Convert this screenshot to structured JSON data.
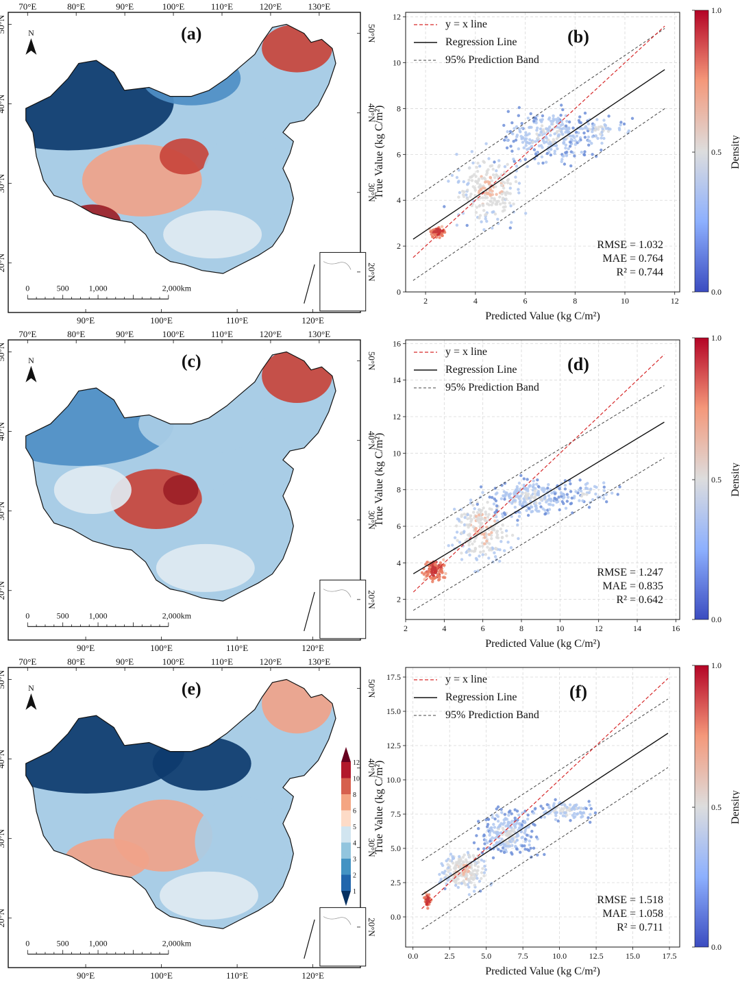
{
  "figure": {
    "maps": [
      {
        "panel": "(a)",
        "scale_labels": [
          "0",
          "500",
          "1,000",
          "2,000km"
        ],
        "top_lon_ticks": [
          "70°E",
          "80°E",
          "90°E",
          "100°E",
          "110°E",
          "120°E",
          "130°E"
        ],
        "bottom_lon_ticks": [
          "90°E",
          "100°E",
          "110°E",
          "120°E"
        ],
        "left_lat_ticks": [
          "50°N",
          "40°N",
          "30°N",
          "20°N"
        ],
        "right_lat_ticks": [
          "50°N",
          "40°N",
          "30°N",
          "20°N"
        ]
      },
      {
        "panel": "(c)",
        "scale_labels": [
          "0",
          "500",
          "1,000",
          "2,000km"
        ],
        "top_lon_ticks": [
          "70°E",
          "80°E",
          "90°E",
          "100°E",
          "110°E",
          "120°E",
          "130°E"
        ],
        "bottom_lon_ticks": [
          "90°E",
          "100°E",
          "110°E",
          "120°E"
        ],
        "left_lat_ticks": [
          "50°N",
          "40°N",
          "30°N",
          "20°N"
        ],
        "right_lat_ticks": [
          "50°N",
          "40°N",
          "30°N",
          "20°N"
        ]
      },
      {
        "panel": "(e)",
        "scale_labels": [
          "0",
          "500",
          "1,000",
          "2,000km"
        ],
        "top_lon_ticks": [
          "70°E",
          "80°E",
          "90°E",
          "100°E",
          "110°E",
          "120°E",
          "130°E"
        ],
        "bottom_lon_ticks": [
          "90°E",
          "100°E",
          "110°E",
          "120°E"
        ],
        "left_lat_ticks": [
          "50°N",
          "40°N",
          "30°N",
          "20°N"
        ],
        "right_lat_ticks": [
          "50°N",
          "40°N",
          "30°N",
          "20°N"
        ]
      }
    ],
    "north_label": "N",
    "map_colorbar": {
      "labels": [
        "12",
        "10",
        "8",
        "6",
        "5",
        "4",
        "3",
        "2",
        "1"
      ],
      "colors": [
        "#67001f",
        "#b2182b",
        "#d6604d",
        "#f4a582",
        "#fddbc7",
        "#d1e5f0",
        "#92c5de",
        "#4393c3",
        "#2166ac",
        "#053061"
      ]
    },
    "map_palette": {
      "deep_blue": "#0d3b6e",
      "mid_blue": "#4f8fc6",
      "light_blue": "#a9cde6",
      "pale": "#dfeaf2",
      "salmon": "#f0a38a",
      "red": "#c8453c",
      "dark_red": "#9c1f27"
    }
  },
  "chart_data": [
    {
      "panel": "(b)",
      "type": "scatter",
      "xlabel": "Predicted Value (kg C/m²)",
      "ylabel": "True Value (kg C/m²)",
      "xlim": [
        1.2,
        12.2
      ],
      "ylim": [
        0,
        12.2
      ],
      "xticks": [
        "2",
        "4",
        "6",
        "8",
        "10",
        "12"
      ],
      "yticks": [
        "0",
        "2",
        "4",
        "6",
        "8",
        "10",
        "12"
      ],
      "legend": [
        "y = x line",
        "Regression Line",
        "95% Prediction Band"
      ],
      "yx_line": [
        [
          1.5,
          1.5
        ],
        [
          11.6,
          11.6
        ]
      ],
      "regression": [
        [
          1.5,
          2.3
        ],
        [
          11.6,
          9.7
        ]
      ],
      "band_upper": [
        [
          1.5,
          4.05
        ],
        [
          11.6,
          11.5
        ]
      ],
      "band_lower": [
        [
          1.5,
          0.5
        ],
        [
          11.6,
          8.0
        ]
      ],
      "metrics": [
        "RMSE = 1.032",
        "MAE = 0.764",
        "R² = 0.744"
      ],
      "grid": true
    },
    {
      "panel": "(d)",
      "type": "scatter",
      "xlabel": "Predicted Value (kg C/m²)",
      "ylabel": "True Value (kg C/m²)",
      "xlim": [
        2,
        16.2
      ],
      "ylim": [
        0.9,
        16.2
      ],
      "xticks": [
        "2",
        "4",
        "6",
        "8",
        "10",
        "12",
        "14",
        "16"
      ],
      "yticks": [
        "2",
        "4",
        "6",
        "8",
        "10",
        "12",
        "14",
        "16"
      ],
      "legend": [
        "y = x line",
        "Regression Line",
        "95% Prediction Band"
      ],
      "yx_line": [
        [
          2.4,
          2.4
        ],
        [
          15.4,
          15.4
        ]
      ],
      "regression": [
        [
          2.4,
          3.4
        ],
        [
          15.4,
          11.7
        ]
      ],
      "band_upper": [
        [
          2.4,
          5.35
        ],
        [
          15.4,
          13.7
        ]
      ],
      "band_lower": [
        [
          2.4,
          1.4
        ],
        [
          15.4,
          9.75
        ]
      ],
      "metrics": [
        "RMSE = 1.247",
        "MAE = 0.835",
        "R² = 0.642"
      ],
      "grid": true
    },
    {
      "panel": "(f)",
      "type": "scatter",
      "xlabel": "Predicted Value (kg C/m²)",
      "ylabel": "True Value (kg C/m²)",
      "xlim": [
        -0.5,
        18.2
      ],
      "ylim": [
        -2.2,
        18.2
      ],
      "xticks": [
        "0.0",
        "2.5",
        "5.0",
        "7.5",
        "10.0",
        "12.5",
        "15.0",
        "17.5"
      ],
      "yticks": [
        "0.0",
        "2.5",
        "5.0",
        "7.5",
        "10.0",
        "12.5",
        "15.0",
        "17.5"
      ],
      "legend": [
        "y = x line",
        "Regression Line",
        "95% Prediction Band"
      ],
      "yx_line": [
        [
          0.6,
          0.6
        ],
        [
          17.4,
          17.4
        ]
      ],
      "regression": [
        [
          0.6,
          1.6
        ],
        [
          17.4,
          13.4
        ]
      ],
      "band_upper": [
        [
          0.6,
          4.1
        ],
        [
          17.4,
          15.9
        ]
      ],
      "band_lower": [
        [
          0.6,
          -0.9
        ],
        [
          17.4,
          10.9
        ]
      ],
      "metrics": [
        "RMSE = 1.518",
        "MAE = 1.058",
        "R² = 0.711"
      ],
      "grid": true
    }
  ],
  "density_colorbar": {
    "label": "Density",
    "ticks": [
      "1.0",
      "0.5",
      "0.0"
    ],
    "colors": [
      "#3b4cc0",
      "#8db0fe",
      "#dddddd",
      "#f4987a",
      "#b40426"
    ]
  },
  "colors": {
    "yx": "#d62728",
    "regression": "#111111",
    "band": "#444444"
  }
}
